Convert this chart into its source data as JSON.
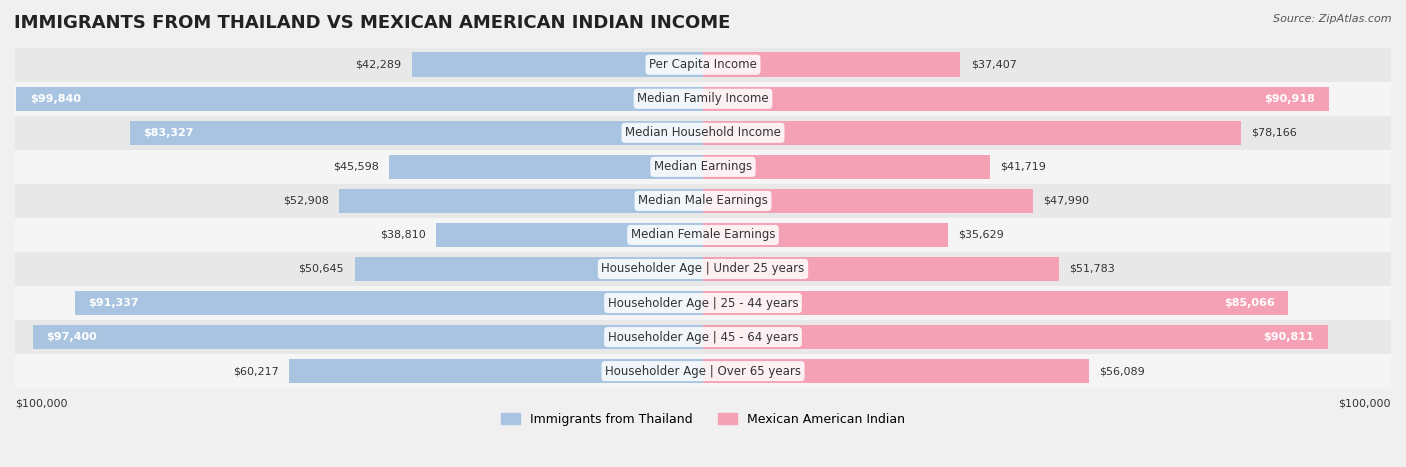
{
  "title": "IMMIGRANTS FROM THAILAND VS MEXICAN AMERICAN INDIAN INCOME",
  "source": "Source: ZipAtlas.com",
  "categories": [
    "Per Capita Income",
    "Median Family Income",
    "Median Household Income",
    "Median Earnings",
    "Median Male Earnings",
    "Median Female Earnings",
    "Householder Age | Under 25 years",
    "Householder Age | 25 - 44 years",
    "Householder Age | 45 - 64 years",
    "Householder Age | Over 65 years"
  ],
  "thailand_values": [
    42289,
    99840,
    83327,
    45598,
    52908,
    38810,
    50645,
    91337,
    97400,
    60217
  ],
  "mexican_values": [
    37407,
    90918,
    78166,
    41719,
    47990,
    35629,
    51783,
    85066,
    90811,
    56089
  ],
  "thailand_color": "#a8c4e0",
  "mexican_color": "#f4a0b5",
  "thailand_label": "Immigrants from Thailand",
  "mexican_label": "Mexican American Indian",
  "max_value": 100000,
  "xlabel_left": "$100,000",
  "xlabel_right": "$100,000",
  "bg_color": "#f0f0f0",
  "row_bg_even": "#e8e8e8",
  "row_bg_odd": "#f5f5f5",
  "title_fontsize": 13,
  "label_fontsize": 8.5,
  "value_fontsize": 8,
  "legend_fontsize": 9
}
